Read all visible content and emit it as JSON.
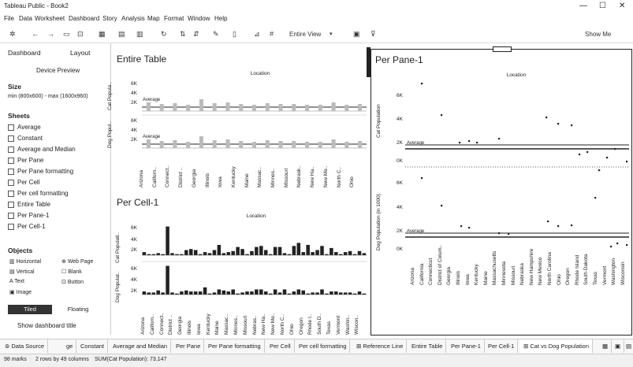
{
  "window": {
    "title": "Tableau Public - Book2"
  },
  "menu": [
    "File",
    "Data",
    "Worksheet",
    "Dashboard",
    "Story",
    "Analysis",
    "Map",
    "Format",
    "Window",
    "Help"
  ],
  "toolbar": {
    "fit": "Entire View",
    "show_me": "Show Me"
  },
  "left": {
    "tab_dashboard": "Dashboard",
    "tab_layout": "Layout",
    "device_preview": "Device Preview",
    "size_label": "Size",
    "size_value": "min (800x600) - max (1600x960)",
    "sheets_label": "Sheets",
    "sheets": [
      "Average",
      "Constant",
      "Average and Median",
      "Per Pane",
      "Per Pane formatting",
      "Per Cell",
      "Per cell formatting",
      "Entire Table",
      "Per Pane-1",
      "Per Cell-1"
    ],
    "objects_label": "Objects",
    "objects": [
      "Horizontal",
      "Web Page",
      "Vertical",
      "Blank",
      "Text",
      "Button",
      "Image"
    ],
    "tiled": "Tiled",
    "floating": "Floating",
    "show_title": "Show dashboard title"
  },
  "entire_table": {
    "title": "Entire Table",
    "header": "Location",
    "y_top": "Cat Popula..",
    "y_bottom": "Dog Popul..",
    "ticks": [
      "6K",
      "4K",
      "2K"
    ],
    "ref_label": "Average",
    "locations": [
      "Arizona",
      "Californ..",
      "Connect..",
      "District ..",
      "Georgia",
      "Illinois",
      "Iowa",
      "Kentucky",
      "Maine",
      "Massac..",
      "Minnes..",
      "Missouri",
      "Nebrask..",
      "New Ha..",
      "New Me..",
      "North C..",
      "Ohio"
    ]
  },
  "per_cell": {
    "title": "Per Cell-1",
    "header": "Location",
    "y_top": "Cat Populati..",
    "y_bottom": "Dog Populat..",
    "ticks": [
      "6K",
      "4K",
      "2K"
    ],
    "locations": [
      "Arizona",
      "Californ..",
      "Connect..",
      "District ..",
      "Georgia",
      "Illinois",
      "Iowa",
      "Kentucky",
      "Maine",
      "Massac..",
      "Minnes..",
      "Missouri",
      "Nebras..",
      "New Ha..",
      "New Me..",
      "North C..",
      "Ohio",
      "Oregon",
      "Rhode I..",
      "South D..",
      "Texas",
      "Vermont",
      "Washin..",
      "Wiscon.."
    ]
  },
  "per_pane": {
    "title": "Per Pane-1",
    "header": "Location",
    "y_top": "Cat Population",
    "y_bottom": "Dog Population (in 1000)",
    "ticks_top": [
      "6K",
      "4K",
      "2K",
      "0K"
    ],
    "ticks_bottom": [
      "6K",
      "4K",
      "2K",
      "0K"
    ],
    "ref_label": "Average",
    "locations": [
      "Arizona",
      "California",
      "Connecticut",
      "District of Colum..",
      "Georgia",
      "Illinois",
      "Iowa",
      "Kentucky",
      "Maine",
      "Massachusetts",
      "Minnesota",
      "Missouri",
      "Nebraska",
      "New Hampshire",
      "New Mexico",
      "North Carolina",
      "Ohio",
      "Oregon",
      "Rhode Island",
      "South Dakota",
      "Texas",
      "Vermont",
      "Washington",
      "Wisconsin"
    ]
  },
  "tabs": [
    "Data Source",
    "ge",
    "Constant",
    "Average and Median",
    "Per Pane",
    "Per Pane formatting",
    "Per Cell",
    "Per cell formatting",
    "Reference Line",
    "Entire Table",
    "Per Pane-1",
    "Per Cell-1",
    "Cat vs Dog Population"
  ],
  "status": {
    "marks": "98 marks",
    "rows": "2 rows by 49 columns",
    "sum": "SUM(Cat Population): 73,147"
  }
}
